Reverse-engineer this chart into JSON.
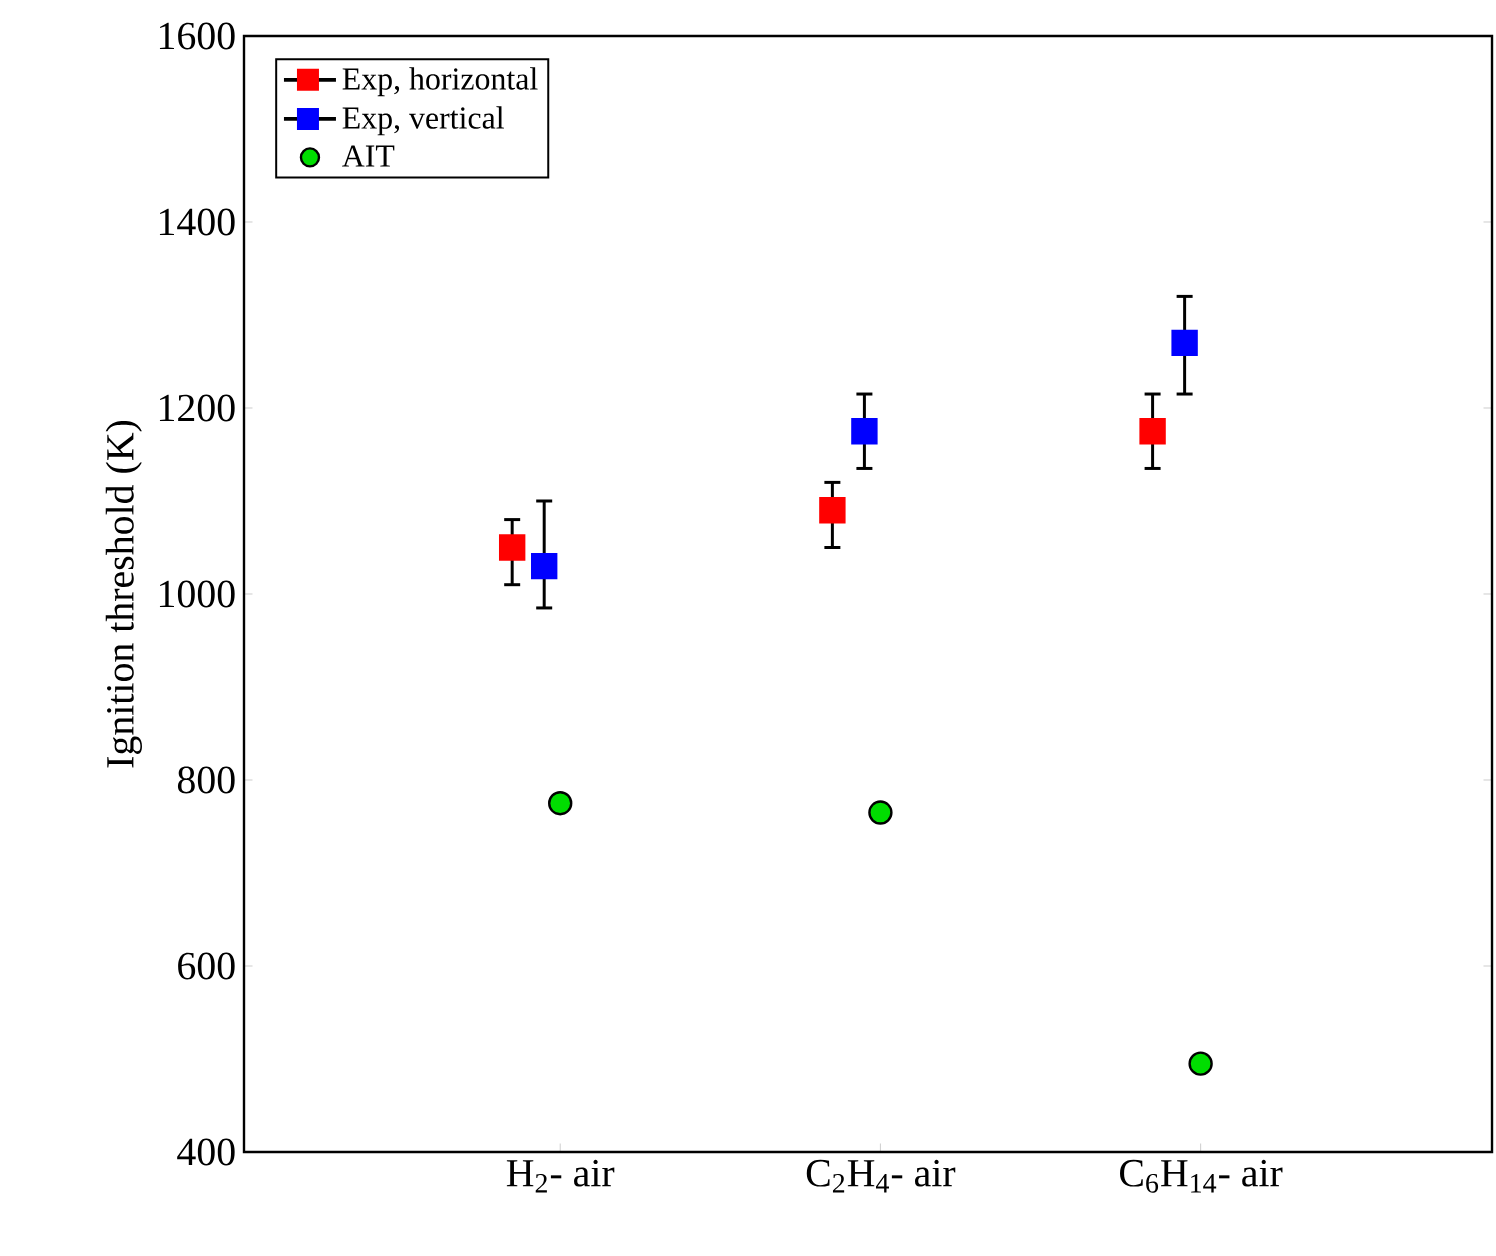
{
  "chart_data": {
    "type": "scatter",
    "ylabel": "Ignition threshold (K)",
    "categories": [
      "H$_{2}$- air",
      "C$_{2}$H$_{4}$- air",
      "C$_{6}$H$_{14}$- air"
    ],
    "ylim": [
      400,
      1600
    ],
    "yticks": [
      400,
      600,
      800,
      1000,
      1200,
      1400,
      1600
    ],
    "legend": "top left",
    "grid": false,
    "series": [
      {
        "name": "Exp, horizontal",
        "color": "#ff0000",
        "marker": "square",
        "values": [
          1050,
          1090,
          1175
        ],
        "errors": [
          [
            1010,
            1080
          ],
          [
            1050,
            1120
          ],
          [
            1135,
            1215
          ]
        ]
      },
      {
        "name": "Exp, vertical",
        "color": "#0000ff",
        "marker": "square",
        "values": [
          1030,
          1175,
          1270
        ],
        "errors": [
          [
            985,
            1100
          ],
          [
            1135,
            1215
          ],
          [
            1215,
            1320
          ]
        ]
      },
      {
        "name": "AIT",
        "color": "#00dd00",
        "marker": "circle",
        "values": [
          775,
          765,
          495
        ]
      }
    ]
  }
}
